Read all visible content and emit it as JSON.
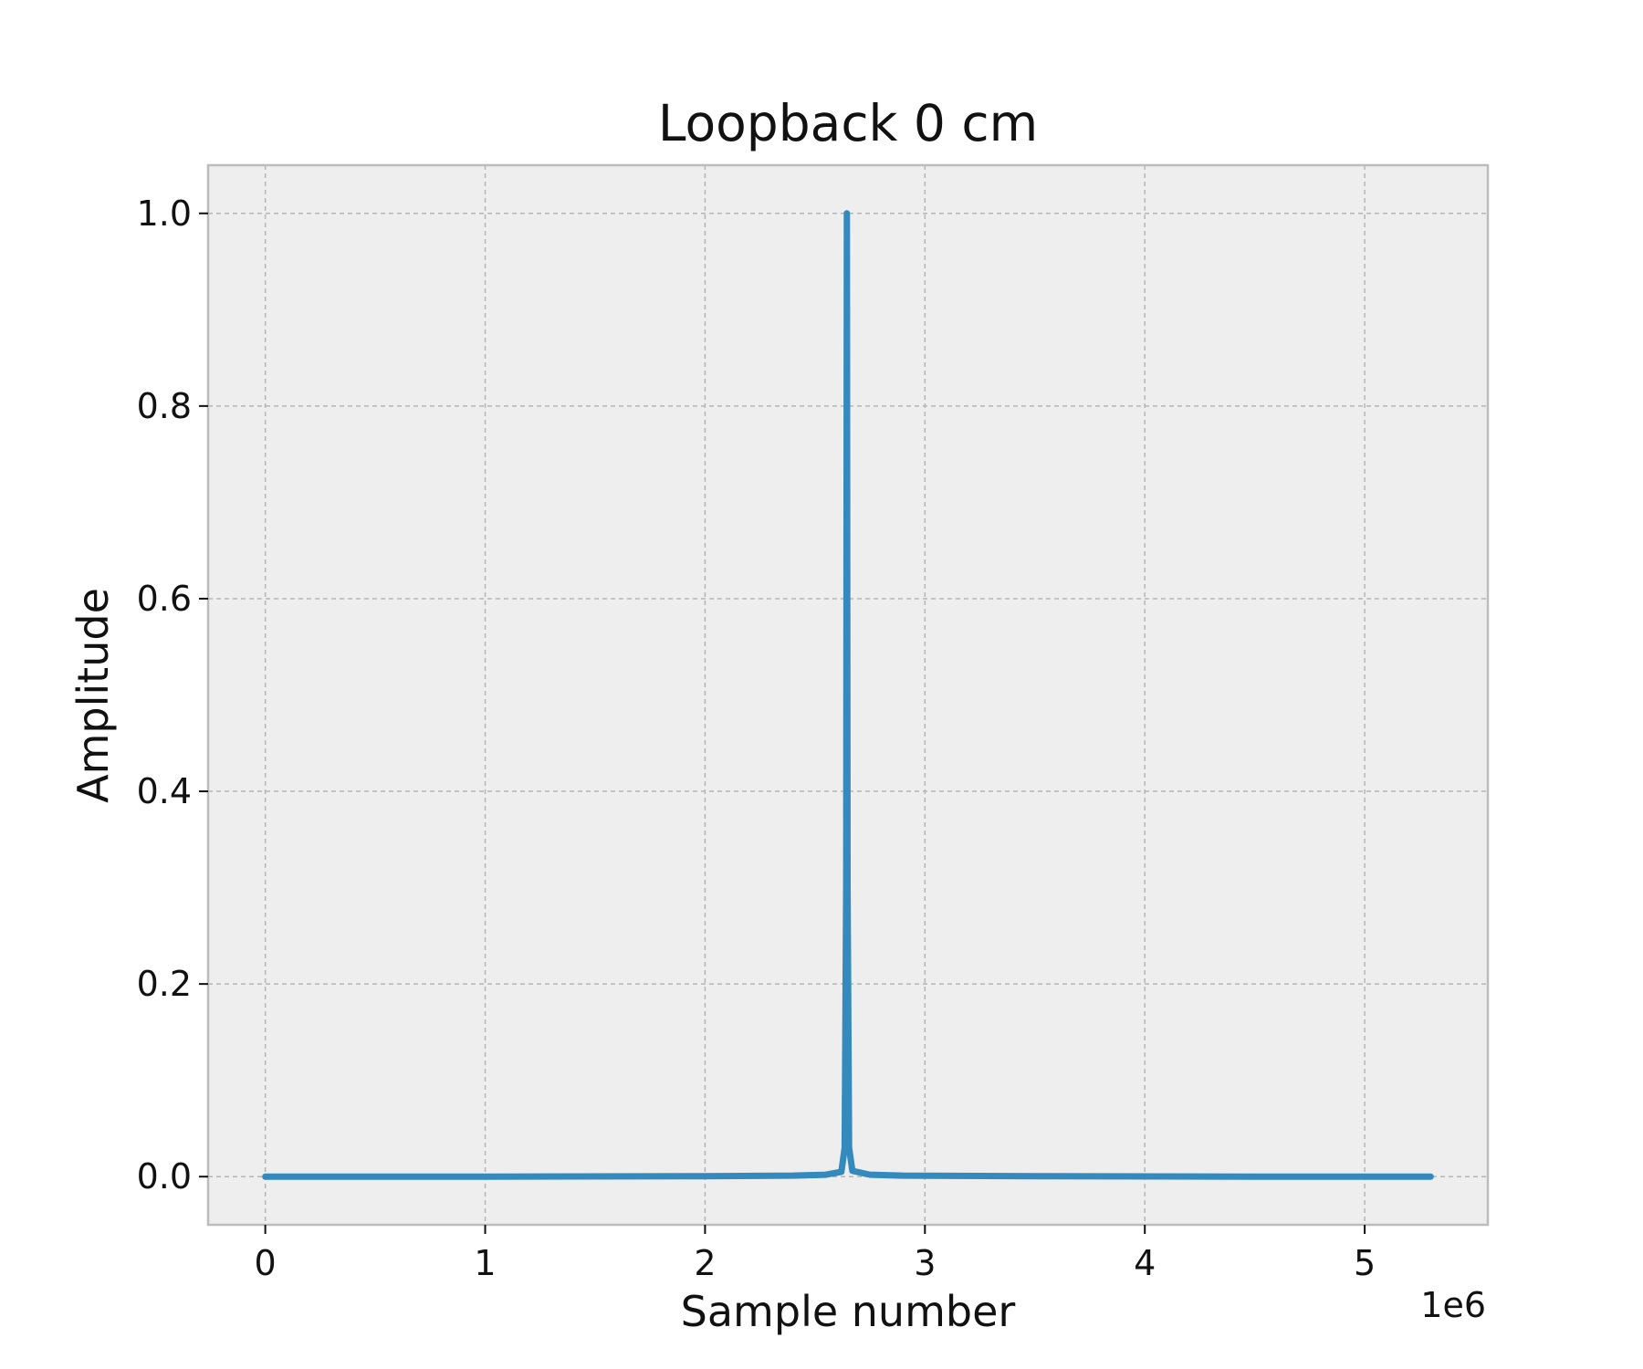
{
  "chart_data": {
    "type": "line",
    "title": "Loopback 0 cm",
    "xlabel": "Sample number",
    "ylabel": "Amplitude",
    "x_offset_label": "1e6",
    "xlim": [
      -260000,
      5560000
    ],
    "ylim": [
      -0.05,
      1.05
    ],
    "x_ticks": [
      0,
      1000000,
      2000000,
      3000000,
      4000000,
      5000000
    ],
    "x_tick_labels": [
      "0",
      "1",
      "2",
      "3",
      "4",
      "5"
    ],
    "y_ticks": [
      0.0,
      0.2,
      0.4,
      0.6,
      0.8,
      1.0
    ],
    "y_tick_labels": [
      "0.0",
      "0.2",
      "0.4",
      "0.6",
      "0.8",
      "1.0"
    ],
    "grid": true,
    "series": [
      {
        "color": "#348abd",
        "x": [
          0,
          1000000,
          2000000,
          2400000,
          2550000,
          2620000,
          2635000,
          2642000,
          2645000,
          2648000,
          2655000,
          2670000,
          2750000,
          2900000,
          3500000,
          4500000,
          5300000
        ],
        "y": [
          0.0,
          0.0,
          0.0005,
          0.001,
          0.002,
          0.005,
          0.03,
          0.3,
          1.0,
          0.3,
          0.03,
          0.006,
          0.002,
          0.001,
          0.0005,
          0.0,
          0.0
        ]
      }
    ]
  }
}
